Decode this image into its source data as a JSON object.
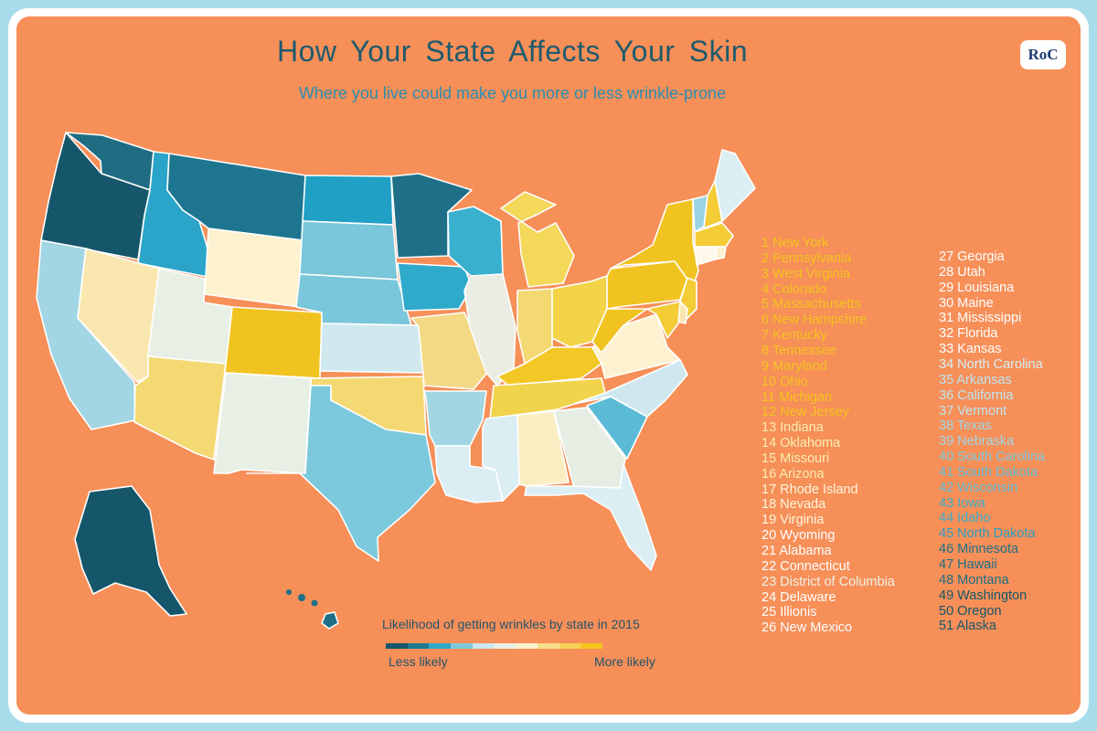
{
  "header": {
    "title": "How Your State Affects Your Skin",
    "subtitle": "Where you live could make you more or less wrinkle-prone",
    "logo_text": "RoC"
  },
  "legend": {
    "title": "Likelihood of getting wrinkles by state in 2015",
    "less_label": "Less likely",
    "more_label": "More likely",
    "scale_colors": [
      "#16566a",
      "#1d7a93",
      "#2ea9c9",
      "#7ec9dd",
      "#cce8ef",
      "#e8efe4",
      "#fbf1cf",
      "#f8df8c",
      "#f4d258",
      "#f3c41f"
    ]
  },
  "rankings_col1": [
    {
      "text": "1  New York",
      "color": "#f3c41f"
    },
    {
      "text": "2  Pennsylvania",
      "color": "#f3c41f"
    },
    {
      "text": "3  West Virginia",
      "color": "#f3c41f"
    },
    {
      "text": "4  Colorado",
      "color": "#f3c41f"
    },
    {
      "text": "5  Massachusetts",
      "color": "#f3c41f"
    },
    {
      "text": "6  New Hampshire",
      "color": "#f3c41f"
    },
    {
      "text": "7  Kentucky",
      "color": "#f3c41f"
    },
    {
      "text": "8  Tennessee",
      "color": "#f3c41f"
    },
    {
      "text": "9  Maryland",
      "color": "#f3c41f"
    },
    {
      "text": "10 Ohio",
      "color": "#f3c41f"
    },
    {
      "text": "11 Michigan",
      "color": "#f3c41f"
    },
    {
      "text": "12  New Jersey",
      "color": "#f3c41f"
    },
    {
      "text": "13  Indiana",
      "color": "#fbeeb0"
    },
    {
      "text": "14  Oklahoma",
      "color": "#fbeeb0"
    },
    {
      "text": "15  Missouri",
      "color": "#fbeeb0"
    },
    {
      "text": "16  Arizona",
      "color": "#fbeeb0"
    },
    {
      "text": "17  Rhode Island",
      "color": "#fdf6dc"
    },
    {
      "text": "18  Nevada",
      "color": "#fdf6dc"
    },
    {
      "text": "19  Virginia",
      "color": "#fdf6dc"
    },
    {
      "text": "20 Wyoming",
      "color": "#ffffff"
    },
    {
      "text": "21  Alabama",
      "color": "#ffffff"
    },
    {
      "text": "22  Connecticut",
      "color": "#ffffff"
    },
    {
      "text": "23  District of Columbia",
      "color": "#eef1e6"
    },
    {
      "text": "24  Delaware",
      "color": "#ffffff"
    },
    {
      "text": "25  Illionis",
      "color": "#ffffff"
    },
    {
      "text": "26  New Mexico",
      "color": "#ffffff"
    }
  ],
  "rankings_col2": [
    {
      "text": "27  Georgia",
      "color": "#ffffff"
    },
    {
      "text": "28  Utah",
      "color": "#ffffff"
    },
    {
      "text": "29  Louisiana",
      "color": "#ffffff"
    },
    {
      "text": "30  Maine",
      "color": "#ffffff"
    },
    {
      "text": "31  Mississippi",
      "color": "#ffffff"
    },
    {
      "text": "32  Florida",
      "color": "#ffffff"
    },
    {
      "text": "33  Kansas",
      "color": "#ffffff"
    },
    {
      "text": "34  North Carolina",
      "color": "#d6eef4"
    },
    {
      "text": "35  Arkansas",
      "color": "#bfe4ee"
    },
    {
      "text": "36  California",
      "color": "#bfe4ee"
    },
    {
      "text": "37  Vermont",
      "color": "#bfe4ee"
    },
    {
      "text": "38  Texas",
      "color": "#9fd6e6"
    },
    {
      "text": "39  Nebraska",
      "color": "#9fd6e6"
    },
    {
      "text": "40  South Carolina",
      "color": "#7ec9dd"
    },
    {
      "text": "41  South Dakota",
      "color": "#5fbcd5"
    },
    {
      "text": "42  Wisconsin",
      "color": "#5fbcd5"
    },
    {
      "text": "43  Iowa",
      "color": "#3aadcd"
    },
    {
      "text": "44  Idaho",
      "color": "#3aadcd"
    },
    {
      "text": "45  North Dakota",
      "color": "#2a9fc2"
    },
    {
      "text": "46  Minnesota",
      "color": "#1e6f87"
    },
    {
      "text": "47  Hawaii",
      "color": "#1e6f87"
    },
    {
      "text": "48  Montana",
      "color": "#1e6f87"
    },
    {
      "text": "49  Washington",
      "color": "#16566a"
    },
    {
      "text": "50  Oregon",
      "color": "#16566a"
    },
    {
      "text": "51  Alaska",
      "color": "#16566a"
    }
  ],
  "map_colors": {
    "WA": "#1f6c83",
    "OR": "#16566a",
    "CA": "#a3d6e4",
    "ID": "#2aa4c8",
    "NV": "#fae7b0",
    "UT": "#e8efe4",
    "AZ": "#f4d872",
    "MT": "#1e7590",
    "WY": "#fdf1cf",
    "CO": "#f1c320",
    "NM": "#e8efe4",
    "ND": "#20a0c4",
    "SD": "#7ac6da",
    "NE": "#7ac6da",
    "KS": "#cfe9ef",
    "OK": "#f4d872",
    "TX": "#7cc8dc",
    "MN": "#1e6f87",
    "IA": "#30aacb",
    "MO": "#f4d985",
    "AR": "#a3d6e4",
    "LA": "#daeef4",
    "WI": "#3ab0cf",
    "IL": "#ebece4",
    "MI": "#f3d85a",
    "IN": "#f4d872",
    "OH": "#f3d448",
    "KY": "#f3c826",
    "TN": "#f2d34c",
    "MS": "#daeef4",
    "AL": "#fbeec2",
    "GA": "#e6eee4",
    "FL": "#daeef4",
    "SC": "#5bbbd6",
    "NC": "#cfe8ef",
    "VA": "#fdf1cf",
    "WV": "#f1c320",
    "PA": "#f1c320",
    "NY": "#f1c320",
    "VT": "#9ad3e3",
    "NH": "#f3cc36",
    "ME": "#daeef4",
    "MA": "#f3cc36",
    "RI": "#fdf1cf",
    "CT": "#fdf8ea",
    "NJ": "#f3cc36",
    "DE": "#f8e7b0",
    "MD": "#f3cc36",
    "AK": "#16566a",
    "HI": "#1e6f87"
  }
}
